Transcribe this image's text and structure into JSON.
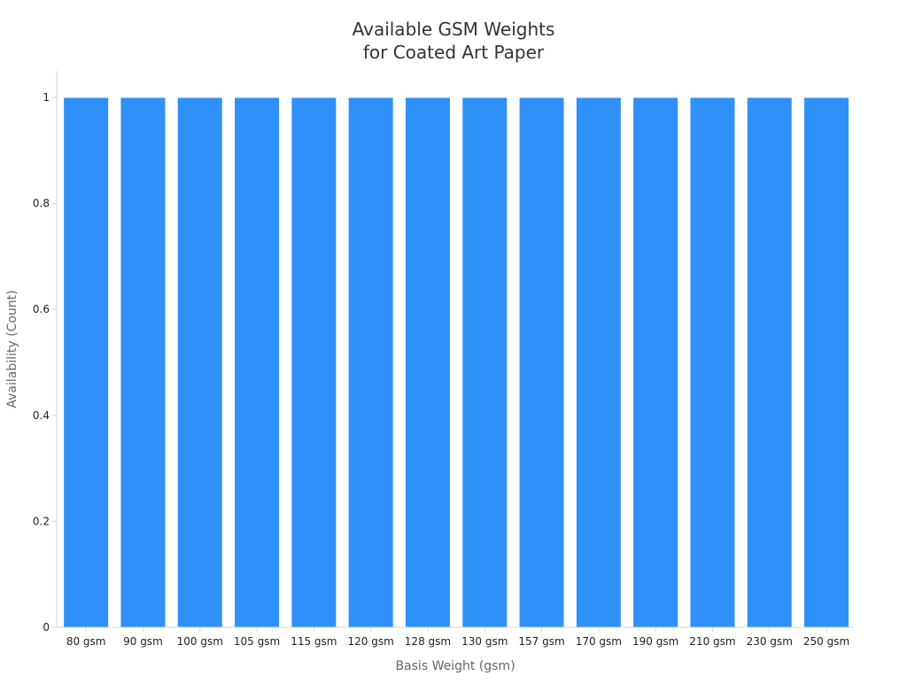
{
  "chart_data": {
    "type": "bar",
    "title": [
      "Available GSM Weights",
      "for Coated Art Paper"
    ],
    "xlabel": "Basis Weight (gsm)",
    "ylabel": "Availability (Count)",
    "categories": [
      "80 gsm",
      "90 gsm",
      "100 gsm",
      "105 gsm",
      "115 gsm",
      "120 gsm",
      "128 gsm",
      "130 gsm",
      "157 gsm",
      "170 gsm",
      "190 gsm",
      "210 gsm",
      "230 gsm",
      "250 gsm"
    ],
    "values": [
      1,
      1,
      1,
      1,
      1,
      1,
      1,
      1,
      1,
      1,
      1,
      1,
      1,
      1
    ],
    "ylim": [
      0,
      1.05
    ],
    "yticks": [
      0,
      0.2,
      0.4,
      0.6,
      0.8,
      1
    ],
    "ytick_labels": [
      "0",
      "0.2",
      "0.4",
      "0.6",
      "0.8",
      "1"
    ],
    "bar_color": "#2f91f8",
    "grid": false,
    "legend": "none"
  }
}
